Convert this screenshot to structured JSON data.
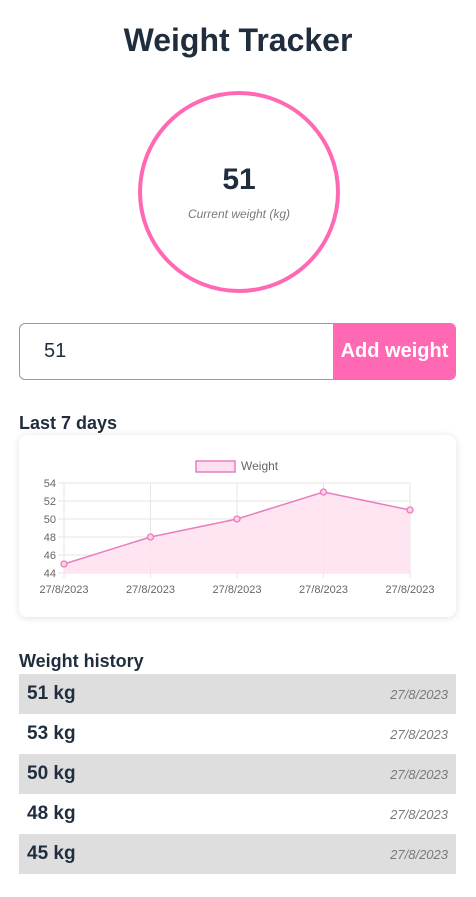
{
  "app": {
    "title": "Weight Tracker"
  },
  "current": {
    "value": "51",
    "caption": "Current weight (kg)"
  },
  "form": {
    "input_value": "51",
    "button_label": "Add weight"
  },
  "chart_section": {
    "title": "Last 7 days"
  },
  "chart_data": {
    "type": "line",
    "categories": [
      "27/8/2023",
      "27/8/2023",
      "27/8/2023",
      "27/8/2023",
      "27/8/2023"
    ],
    "series": [
      {
        "name": "Weight",
        "values": [
          45,
          48,
          50,
          53,
          51
        ]
      }
    ],
    "ylim": [
      44,
      54
    ],
    "yticks": [
      "44",
      "46",
      "48",
      "50",
      "52",
      "54"
    ],
    "legend": "top-center",
    "grid": true,
    "colors": {
      "line": "#e87dbf",
      "fill": "#ffe0f0",
      "point": "#e87dbf"
    }
  },
  "history": {
    "title": "Weight history",
    "entries": [
      {
        "weight": "51 kg",
        "date": "27/8/2023"
      },
      {
        "weight": "53 kg",
        "date": "27/8/2023"
      },
      {
        "weight": "50 kg",
        "date": "27/8/2023"
      },
      {
        "weight": "48 kg",
        "date": "27/8/2023"
      },
      {
        "weight": "45 kg",
        "date": "27/8/2023"
      }
    ]
  },
  "colors": {
    "accent": "#ff69b4",
    "text": "#1f2d3d",
    "row_alt": "#dedede"
  }
}
